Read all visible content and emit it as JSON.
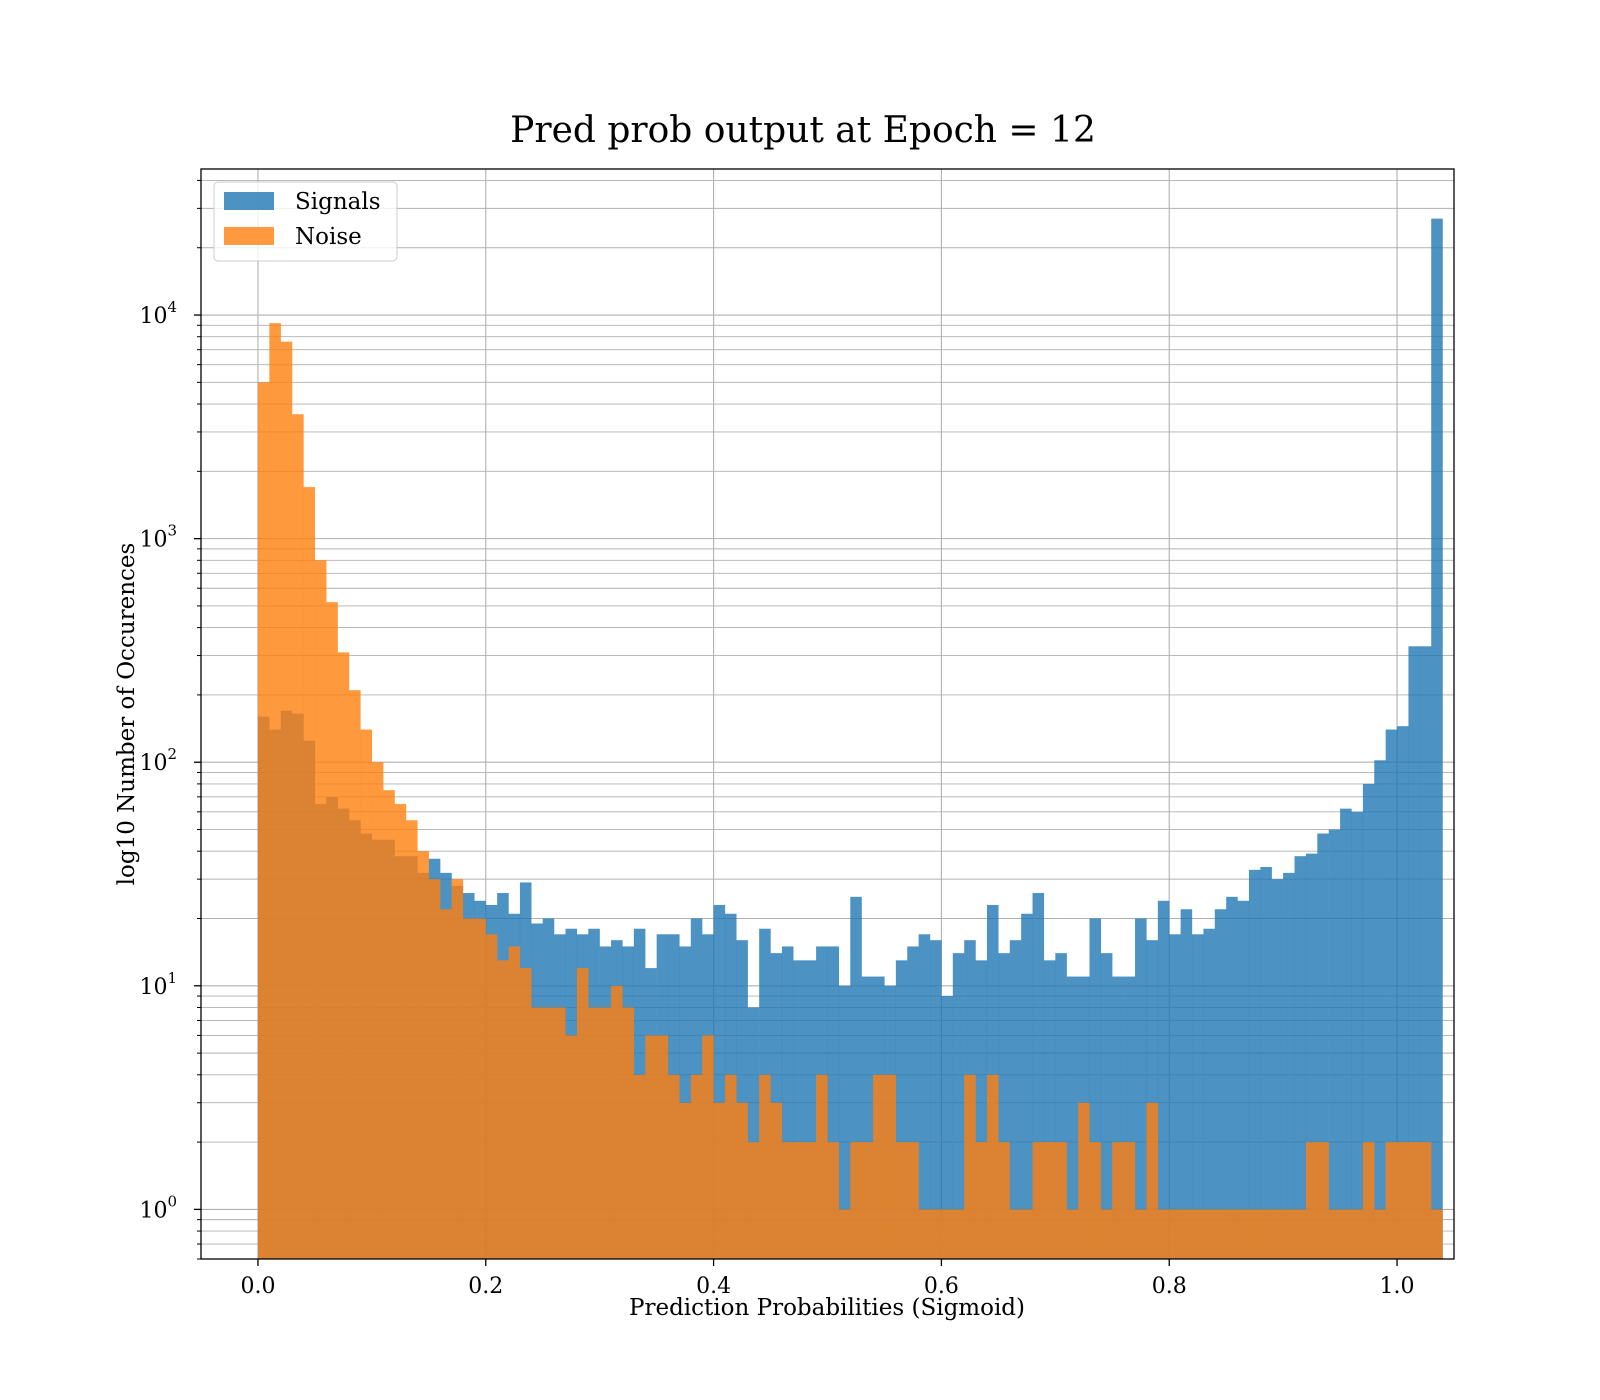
{
  "chart_data": {
    "type": "bar",
    "subtype": "overlapping-histogram",
    "title": "Pred prob output at Epoch = 12",
    "xlabel": "Prediction Probabilities (Sigmoid)",
    "ylabel": "log10 Number of Occurences",
    "xlim": [
      -0.05,
      1.05
    ],
    "ylim": [
      0.6,
      45000
    ],
    "yscale": "log",
    "grid": true,
    "legend_position": "top-left",
    "bin_start": 0.0,
    "bin_width": 0.01,
    "x_ticks": [
      {
        "value": 0.0,
        "label": "0.0"
      },
      {
        "value": 0.2,
        "label": "0.2"
      },
      {
        "value": 0.4,
        "label": "0.4"
      },
      {
        "value": 0.6,
        "label": "0.6"
      },
      {
        "value": 0.8,
        "label": "0.8"
      },
      {
        "value": 1.0,
        "label": "1.0"
      }
    ],
    "y_ticks": [
      {
        "value": 1,
        "base": "10",
        "exp": "0"
      },
      {
        "value": 10,
        "base": "10",
        "exp": "1"
      },
      {
        "value": 100,
        "base": "10",
        "exp": "2"
      },
      {
        "value": 1000,
        "base": "10",
        "exp": "3"
      },
      {
        "value": 10000,
        "base": "10",
        "exp": "4"
      }
    ],
    "series": [
      {
        "name": "Signals",
        "color": "#1f77b4",
        "opacity": 0.8,
        "values": [
          160,
          140,
          170,
          165,
          125,
          65,
          70,
          62,
          55,
          48,
          45,
          45,
          38,
          38,
          32,
          37,
          32,
          28,
          26,
          24,
          23,
          26,
          21,
          29,
          19,
          20,
          17,
          18,
          17,
          18,
          15,
          16,
          15,
          18,
          12,
          17,
          17,
          15,
          20,
          17,
          23,
          21,
          16,
          8,
          18,
          14,
          15,
          13,
          13,
          15,
          15,
          10,
          25,
          11,
          11,
          10,
          13,
          15,
          17,
          16,
          9,
          14,
          16,
          13,
          23,
          14,
          16,
          21,
          26,
          13,
          14,
          11,
          11,
          20,
          14,
          11,
          11,
          20,
          16,
          24,
          17,
          22,
          17,
          18,
          22,
          25,
          24,
          33,
          34,
          30,
          32,
          38,
          39,
          48,
          50,
          62,
          60,
          80,
          102,
          140,
          145,
          330,
          330,
          27000
        ]
      },
      {
        "name": "Noise",
        "color": "#ff7f0e",
        "opacity": 0.8,
        "values": [
          5000,
          9200,
          7600,
          3600,
          1700,
          800,
          520,
          310,
          210,
          140,
          100,
          75,
          65,
          55,
          40,
          30,
          22,
          30,
          20,
          20,
          17,
          13,
          15,
          12,
          8,
          8,
          8,
          6,
          12,
          8,
          8,
          10,
          8,
          4,
          6,
          6,
          4,
          3,
          4,
          6,
          3,
          4,
          3,
          2,
          4,
          3,
          2,
          2,
          2,
          4,
          2,
          1,
          2,
          2,
          4,
          4,
          2,
          2,
          1,
          1,
          1,
          1,
          4,
          2,
          4,
          2,
          1,
          1,
          2,
          2,
          2,
          1,
          3,
          2,
          1,
          2,
          2,
          1,
          3,
          1,
          1,
          1,
          1,
          1,
          1,
          1,
          1,
          1,
          1,
          1,
          1,
          1,
          2,
          2,
          1,
          1,
          1,
          2,
          1,
          2,
          2,
          2,
          2,
          1
        ]
      }
    ]
  }
}
